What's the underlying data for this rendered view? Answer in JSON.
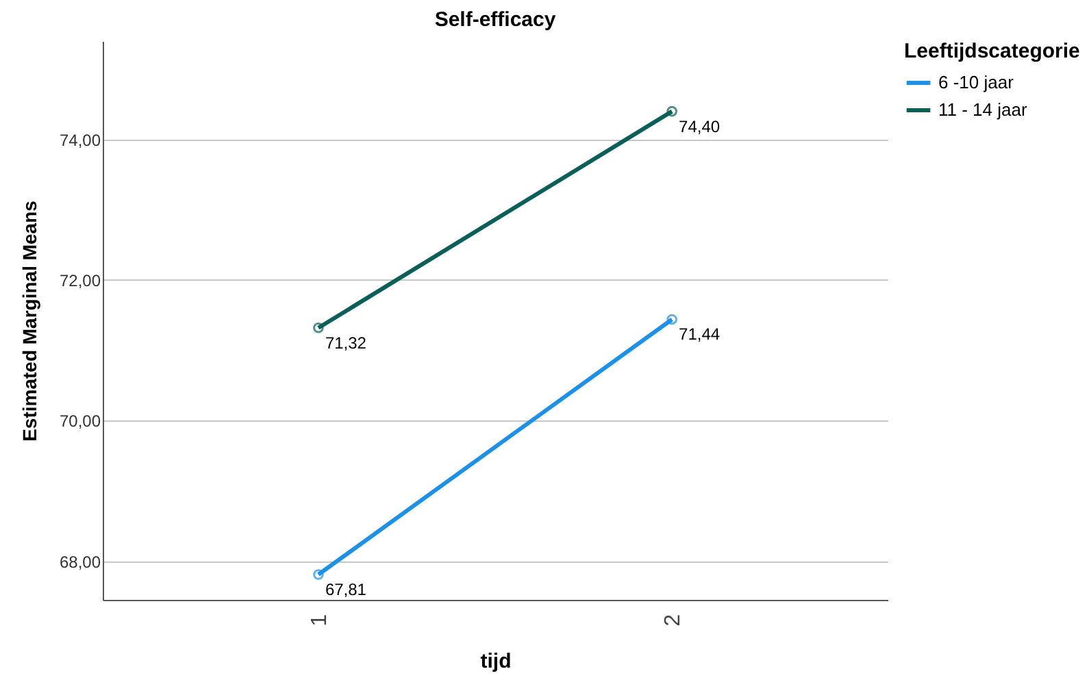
{
  "chart_data": {
    "type": "line",
    "title": "Self-efficacy",
    "xlabel": "tijd",
    "ylabel": "Estimated Marginal Means",
    "legend_title": "Leeftijdscategorie",
    "categories": [
      "1",
      "2"
    ],
    "series": [
      {
        "name": "6 -10 jaar",
        "color": "#1e90e6",
        "values": [
          67.81,
          71.44
        ],
        "value_labels": [
          "67,81",
          "71,44"
        ]
      },
      {
        "name": "11 - 14 jaar",
        "color": "#0c5f58",
        "values": [
          71.32,
          74.4
        ],
        "value_labels": [
          "71,32",
          "74,40"
        ]
      }
    ],
    "ylim": [
      67.45,
      75.4
    ],
    "yticks": [
      {
        "value": 68,
        "label": "68,00"
      },
      {
        "value": 70,
        "label": "70,00"
      },
      {
        "value": 72,
        "label": "72,00"
      },
      {
        "value": 74,
        "label": "74,00"
      }
    ],
    "grid": "y",
    "legend": "top right",
    "marker": "circle",
    "line_style": "solid"
  }
}
